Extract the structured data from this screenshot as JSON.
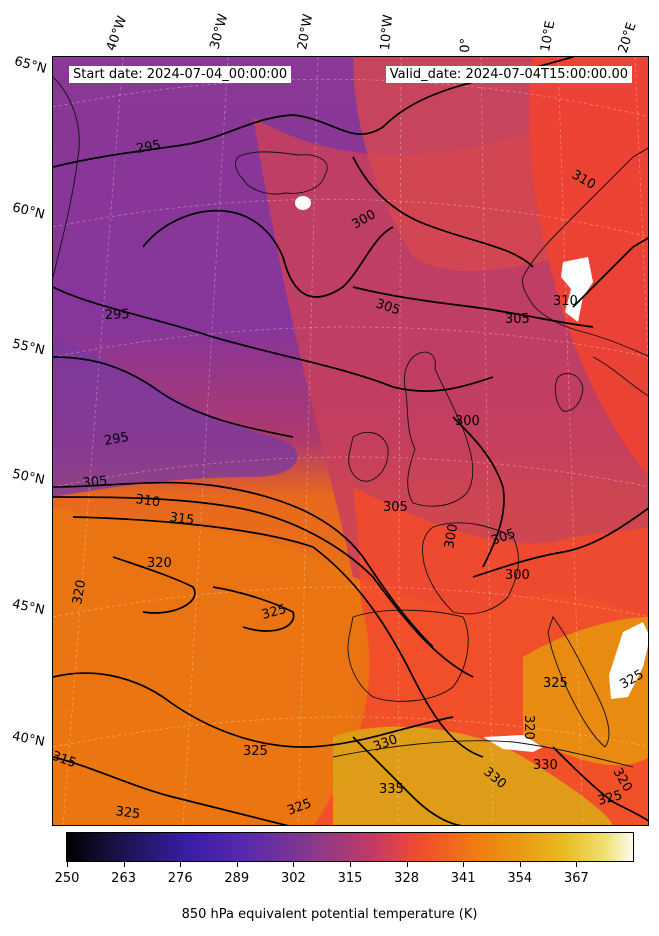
{
  "map": {
    "start_date": "Start date: 2024-07-04_00:00:00",
    "valid_date": "Valid_date: 2024-07-04T15:00:00.00",
    "longitude_labels": [
      "40°W",
      "30°W",
      "20°W",
      "10°W",
      "0°",
      "10°E",
      "20°E"
    ],
    "latitude_labels": [
      "65°N",
      "60°N",
      "55°N",
      "50°N",
      "45°N",
      "40°N"
    ],
    "contour_labels": [
      "295",
      "295",
      "295",
      "300",
      "300",
      "300",
      "300",
      "305",
      "305",
      "305",
      "305",
      "305",
      "310",
      "310",
      "310",
      "315",
      "320",
      "320",
      "320",
      "320",
      "325",
      "325",
      "325",
      "325",
      "325",
      "325",
      "330",
      "330",
      "330",
      "335",
      "315",
      "325"
    ],
    "variable": "850 hPa equivalent potential temperature",
    "colormap": "CMRmap"
  },
  "colorbar": {
    "ticks": [
      "250",
      "263",
      "276",
      "289",
      "302",
      "315",
      "328",
      "341",
      "354",
      "367"
    ],
    "label": "850 hPa equivalent potential temperature (K)",
    "colors": [
      "#000000",
      "#1c1450",
      "#3a1ea8",
      "#5a2aaa",
      "#8a3a8a",
      "#c23a66",
      "#f24a30",
      "#f07a14",
      "#e89a10",
      "#e8bc20",
      "#f0e070",
      "#fbfbee"
    ]
  }
}
